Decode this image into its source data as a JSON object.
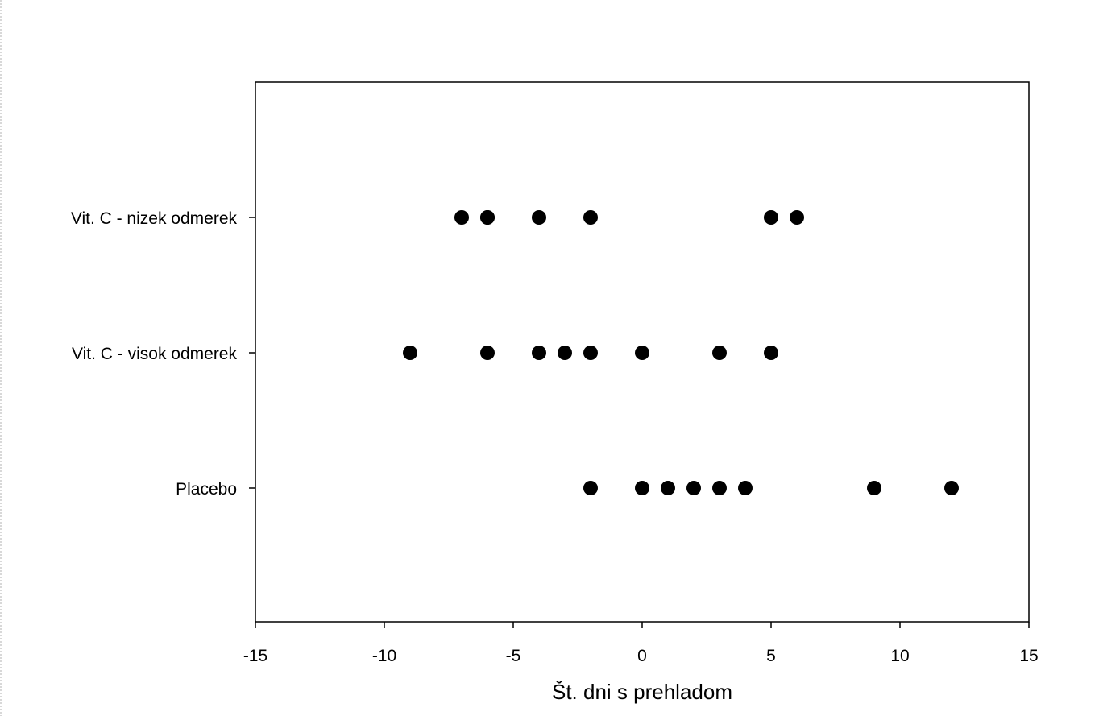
{
  "chart_data": {
    "type": "scatter",
    "title": "",
    "xlabel": "Št. dni s prehladom",
    "ylabel": "",
    "xlim": [
      -15,
      15
    ],
    "x_ticks": [
      -15,
      -10,
      -5,
      0,
      5,
      10,
      15
    ],
    "x_tick_labels": [
      "-15",
      "-10",
      "-5",
      "0",
      "5",
      "10",
      "15"
    ],
    "categories": [
      "Vit. C - nizek odmerek",
      "Vit. C - visok odmerek",
      "Placebo"
    ],
    "grid": false,
    "legend": "none",
    "marker_color": "#000000",
    "series": [
      {
        "category": "Vit. C - nizek odmerek",
        "values": [
          -7,
          -6,
          -6,
          -4,
          -2,
          5,
          6
        ]
      },
      {
        "category": "Vit. C - visok odmerek",
        "values": [
          -9,
          -6,
          -4,
          -3,
          -2,
          0,
          3,
          5
        ]
      },
      {
        "category": "Placebo",
        "values": [
          -2,
          0,
          1,
          2,
          3,
          4,
          9,
          12
        ]
      }
    ]
  }
}
